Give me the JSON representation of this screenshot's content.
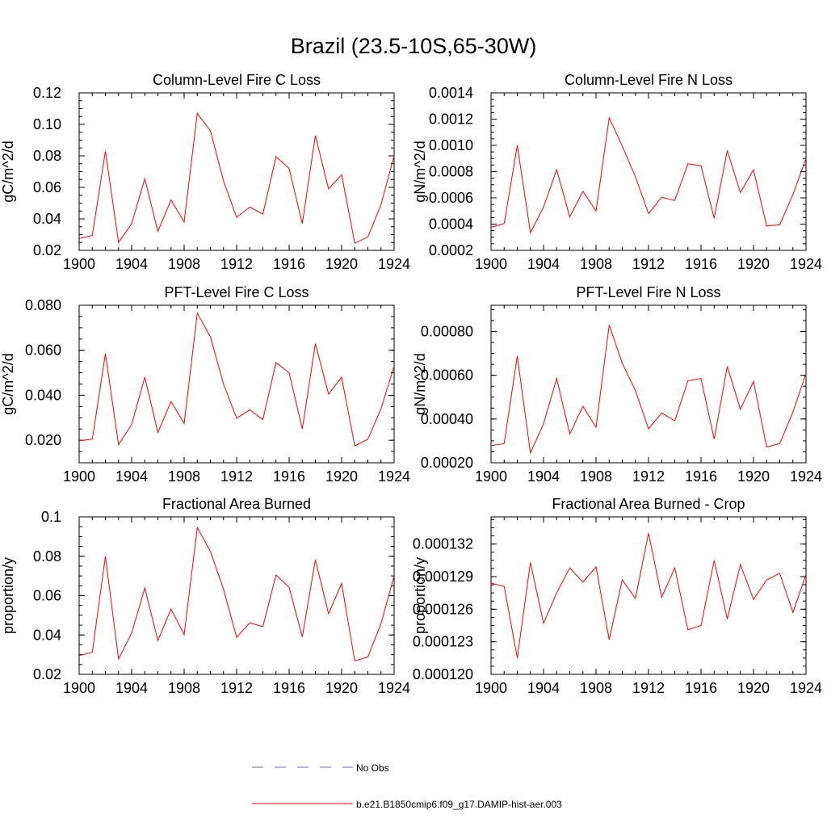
{
  "figure": {
    "title": "Brazil (23.5-10S,65-30W)",
    "series_color": "#ff0000",
    "obs_color": "#6666cc"
  },
  "legend": {
    "entries": [
      {
        "label": "No Obs",
        "style": "dashed",
        "color": "#6666cc"
      },
      {
        "label": "b.e21.B1850cmip6.f09_g17.DAMIP-hist-aer.003",
        "style": "solid",
        "color": "#ff0000"
      }
    ]
  },
  "chart_data": [
    {
      "type": "line",
      "title": "Column-Level Fire C Loss",
      "ylabel": "gC/m^2/d",
      "xlim": [
        1900,
        1924
      ],
      "ylim": [
        0.02,
        0.12
      ],
      "xticks": [
        "1900",
        "1904",
        "1908",
        "1912",
        "1916",
        "1920",
        "1924"
      ],
      "yticks": [
        "0.02",
        "0.04",
        "0.06",
        "0.08",
        "0.10",
        "0.12"
      ],
      "series": [
        {
          "name": "b.e21.B1850cmip6.f09_g17.DAMIP-hist-aer.003",
          "x": [
            1900,
            1901,
            1902,
            1903,
            1904,
            1905,
            1906,
            1907,
            1908,
            1909,
            1910,
            1911,
            1912,
            1913,
            1914,
            1915,
            1916,
            1917,
            1918,
            1919,
            1920,
            1921,
            1922,
            1923,
            1924
          ],
          "y": [
            0.0275,
            0.0295,
            0.083,
            0.025,
            0.037,
            0.0655,
            0.032,
            0.052,
            0.038,
            0.107,
            0.096,
            0.064,
            0.041,
            0.0475,
            0.043,
            0.0795,
            0.072,
            0.037,
            0.093,
            0.059,
            0.068,
            0.0245,
            0.0285,
            0.049,
            0.08
          ]
        }
      ]
    },
    {
      "type": "line",
      "title": "Column-Level Fire N Loss",
      "ylabel": "gN/m^2/d",
      "xlim": [
        1900,
        1924
      ],
      "ylim": [
        0.0002,
        0.0014
      ],
      "xticks": [
        "1900",
        "1904",
        "1908",
        "1912",
        "1916",
        "1920",
        "1924"
      ],
      "yticks": [
        "0.0002",
        "0.0004",
        "0.0006",
        "0.0008",
        "0.0010",
        "0.0012",
        "0.0014"
      ],
      "series": [
        {
          "name": "b.e21.B1850cmip6.f09_g17.DAMIP-hist-aer.003",
          "x": [
            1900,
            1901,
            1902,
            1903,
            1904,
            1905,
            1906,
            1907,
            1908,
            1909,
            1910,
            1911,
            1912,
            1913,
            1914,
            1915,
            1916,
            1917,
            1918,
            1919,
            1920,
            1921,
            1922,
            1923,
            1924
          ],
          "y": [
            0.000375,
            0.000405,
            0.001,
            0.000335,
            0.00053,
            0.000815,
            0.000455,
            0.00065,
            0.0005,
            0.00121,
            0.000995,
            0.00076,
            0.00048,
            0.000605,
            0.00058,
            0.00086,
            0.000845,
            0.000445,
            0.00096,
            0.00064,
            0.000815,
            0.000385,
            0.000395,
            0.000625,
            0.0009
          ]
        }
      ]
    },
    {
      "type": "line",
      "title": "PFT-Level Fire C Loss",
      "ylabel": "gC/m^2/d",
      "xlim": [
        1900,
        1924
      ],
      "ylim": [
        0.01,
        0.08
      ],
      "xticks": [
        "1900",
        "1904",
        "1908",
        "1912",
        "1916",
        "1920",
        "1924"
      ],
      "yticks": [
        "0.020",
        "0.040",
        "0.060",
        "0.080"
      ],
      "ytick_values": [
        0.02,
        0.04,
        0.06,
        0.08
      ],
      "series": [
        {
          "name": "b.e21.B1850cmip6.f09_g17.DAMIP-hist-aer.003",
          "x": [
            1900,
            1901,
            1902,
            1903,
            1904,
            1905,
            1906,
            1907,
            1908,
            1909,
            1910,
            1911,
            1912,
            1913,
            1914,
            1915,
            1916,
            1917,
            1918,
            1919,
            1920,
            1921,
            1922,
            1923,
            1924
          ],
          "y": [
            0.0198,
            0.0205,
            0.0585,
            0.018,
            0.027,
            0.048,
            0.0235,
            0.0372,
            0.0275,
            0.0765,
            0.066,
            0.045,
            0.0298,
            0.0335,
            0.0292,
            0.0545,
            0.05,
            0.025,
            0.063,
            0.0405,
            0.048,
            0.0175,
            0.0205,
            0.034,
            0.053
          ]
        }
      ]
    },
    {
      "type": "line",
      "title": "PFT-Level Fire N Loss",
      "ylabel": "gN/m^2/d",
      "xlim": [
        1900,
        1924
      ],
      "ylim": [
        0.0002,
        0.00092
      ],
      "xticks": [
        "1900",
        "1904",
        "1908",
        "1912",
        "1916",
        "1920",
        "1924"
      ],
      "yticks": [
        "0.00020",
        "0.00040",
        "0.00060",
        "0.00080"
      ],
      "ytick_values": [
        0.0002,
        0.0004,
        0.0006,
        0.0008
      ],
      "series": [
        {
          "name": "b.e21.B1850cmip6.f09_g17.DAMIP-hist-aer.003",
          "x": [
            1900,
            1901,
            1902,
            1903,
            1904,
            1905,
            1906,
            1907,
            1908,
            1909,
            1910,
            1911,
            1912,
            1913,
            1914,
            1915,
            1916,
            1917,
            1918,
            1919,
            1920,
            1921,
            1922,
            1923,
            1924
          ],
          "y": [
            0.000278,
            0.000288,
            0.000688,
            0.000245,
            0.000378,
            0.000585,
            0.000332,
            0.000458,
            0.000362,
            0.00083,
            0.000655,
            0.00053,
            0.000355,
            0.000428,
            0.000392,
            0.000575,
            0.000585,
            0.000308,
            0.00064,
            0.000445,
            0.000572,
            0.000272,
            0.000288,
            0.000432,
            0.000608
          ]
        }
      ]
    },
    {
      "type": "line",
      "title": "Fractional Area Burned",
      "ylabel": "proportion/y",
      "xlim": [
        1900,
        1924
      ],
      "ylim": [
        0.02,
        0.1
      ],
      "xticks": [
        "1900",
        "1904",
        "1908",
        "1912",
        "1916",
        "1920",
        "1924"
      ],
      "yticks": [
        "0.02",
        "0.04",
        "0.06",
        "0.08",
        "0.1"
      ],
      "series": [
        {
          "name": "b.e21.B1850cmip6.f09_g17.DAMIP-hist-aer.003",
          "x": [
            1900,
            1901,
            1902,
            1903,
            1904,
            1905,
            1906,
            1907,
            1908,
            1909,
            1910,
            1911,
            1912,
            1913,
            1914,
            1915,
            1916,
            1917,
            1918,
            1919,
            1920,
            1921,
            1922,
            1923,
            1924
          ],
          "y": [
            0.0295,
            0.0312,
            0.08,
            0.0278,
            0.041,
            0.0638,
            0.0372,
            0.0532,
            0.0402,
            0.0945,
            0.0825,
            0.0632,
            0.0388,
            0.0462,
            0.0442,
            0.0705,
            0.0642,
            0.039,
            0.0782,
            0.0508,
            0.0662,
            0.0268,
            0.0288,
            0.0458,
            0.07
          ]
        }
      ]
    },
    {
      "type": "line",
      "title": "Fractional Area Burned - Crop",
      "ylabel": "proportion/y",
      "xlim": [
        1900,
        1924
      ],
      "ylim": [
        0.00012,
        0.0001345
      ],
      "xticks": [
        "1900",
        "1904",
        "1908",
        "1912",
        "1916",
        "1920",
        "1924"
      ],
      "yticks": [
        "0.000120",
        "0.000123",
        "0.000126",
        "0.000129",
        "0.000132"
      ],
      "ytick_values": [
        0.00012,
        0.000123,
        0.000126,
        0.000129,
        0.000132
      ],
      "series": [
        {
          "name": "b.e21.B1850cmip6.f09_g17.DAMIP-hist-aer.003",
          "x": [
            1900,
            1901,
            1902,
            1903,
            1904,
            1905,
            1906,
            1907,
            1908,
            1909,
            1910,
            1911,
            1912,
            1913,
            1914,
            1915,
            1916,
            1917,
            1918,
            1919,
            1920,
            1921,
            1922,
            1923,
            1924
          ],
          "y": [
            0.0001284,
            0.0001281,
            0.0001215,
            0.0001303,
            0.0001247,
            0.0001275,
            0.0001298,
            0.0001285,
            0.0001299,
            0.0001232,
            0.0001287,
            0.000127,
            0.000133,
            0.0001271,
            0.0001298,
            0.0001241,
            0.0001245,
            0.0001305,
            0.0001251,
            0.0001301,
            0.0001269,
            0.0001287,
            0.0001293,
            0.0001257,
            0.0001292
          ]
        }
      ]
    }
  ]
}
